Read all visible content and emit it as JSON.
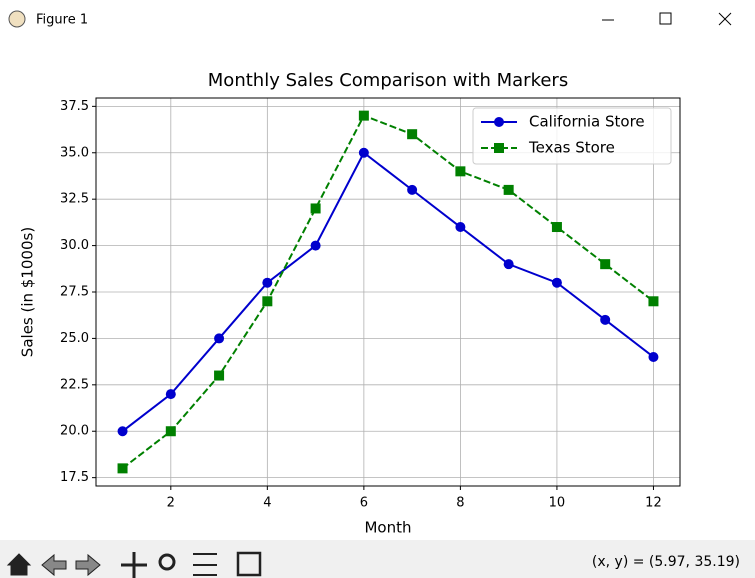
{
  "window": {
    "title": "Figure 1",
    "status": "(x, y) = (5.97, 35.19)"
  },
  "chart_data": {
    "type": "line",
    "title": "Monthly Sales Comparison with Markers",
    "x_label": "Month",
    "y_label": "Sales (in $1000s)",
    "x": [
      1,
      2,
      3,
      4,
      5,
      6,
      7,
      8,
      9,
      10,
      11,
      12
    ],
    "series": [
      {
        "name": "California Store",
        "color": "#0000cd",
        "marker": "circle",
        "linestyle": "solid",
        "values": [
          20,
          22,
          25,
          28,
          30,
          35,
          33,
          31,
          29,
          28,
          26,
          24
        ]
      },
      {
        "name": "Texas Store",
        "color": "#008000",
        "marker": "square",
        "linestyle": "dashed",
        "values": [
          18,
          20,
          23,
          27,
          32,
          37,
          36,
          34,
          33,
          31,
          29,
          27
        ]
      }
    ],
    "xlim": [
      0.45,
      12.55
    ],
    "xticks": [
      2,
      4,
      6,
      8,
      10,
      12
    ],
    "ylim": [
      17.05,
      37.95
    ],
    "yticks": [
      17.5,
      {
        "value": 20,
        "label": "20.0"
      },
      22.5,
      {
        "value": 25,
        "label": "25.0"
      },
      27.5,
      {
        "value": 30,
        "label": "30.0"
      },
      32.5,
      {
        "value": 35,
        "label": "35.0"
      },
      37.5
    ],
    "grid": true,
    "legend": "upper right"
  }
}
